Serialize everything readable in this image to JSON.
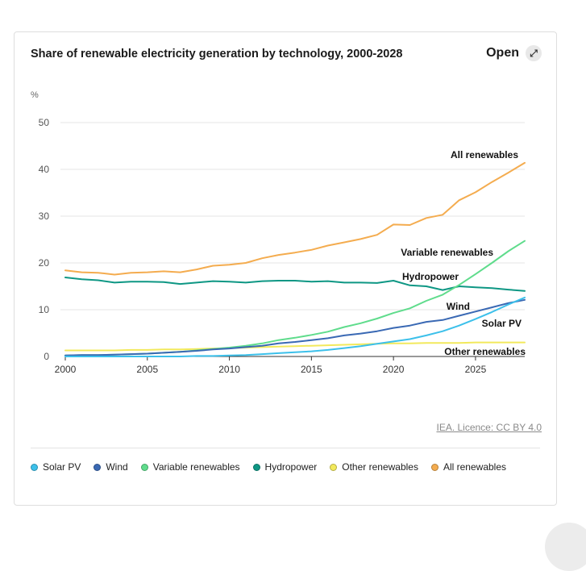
{
  "card": {
    "title": "Share of renewable electricity generation by technology, 2000-2028",
    "open_label": "Open",
    "open_icon": "expand-icon",
    "source": "IEA. Licence: CC BY 4.0"
  },
  "chart_data": {
    "type": "line",
    "title": "Share of renewable electricity generation by technology, 2000-2028",
    "ylabel": "%",
    "xlabel": "",
    "xlim": [
      2000,
      2028
    ],
    "ylim": [
      0,
      50
    ],
    "xticks": [
      2000,
      2005,
      2010,
      2015,
      2020,
      2025
    ],
    "yticks": [
      0,
      10,
      20,
      30,
      40,
      50
    ],
    "grid": true,
    "x": [
      2000,
      2001,
      2002,
      2003,
      2004,
      2005,
      2006,
      2007,
      2008,
      2009,
      2010,
      2011,
      2012,
      2013,
      2014,
      2015,
      2016,
      2017,
      2018,
      2019,
      2020,
      2021,
      2022,
      2023,
      2024,
      2025,
      2026,
      2027,
      2028
    ],
    "series": [
      {
        "name": "Solar PV",
        "label": "Solar PV",
        "color": "#3cc0ea",
        "values": [
          0,
          0,
          0,
          0,
          0,
          0,
          0,
          0,
          0.1,
          0.1,
          0.2,
          0.3,
          0.5,
          0.7,
          0.9,
          1.1,
          1.4,
          1.8,
          2.2,
          2.7,
          3.2,
          3.7,
          4.5,
          5.4,
          6.6,
          8.0,
          9.5,
          11.1,
          12.6
        ]
      },
      {
        "name": "Wind",
        "label": "Wind",
        "color": "#3a69b4",
        "values": [
          0.2,
          0.3,
          0.3,
          0.4,
          0.5,
          0.6,
          0.8,
          1.0,
          1.2,
          1.5,
          1.7,
          2.0,
          2.3,
          2.8,
          3.1,
          3.5,
          3.9,
          4.5,
          4.9,
          5.4,
          6.1,
          6.6,
          7.4,
          7.8,
          8.7,
          9.6,
          10.5,
          11.4,
          12.1
        ]
      },
      {
        "name": "Variable renewables",
        "label": "Variable renewables",
        "color": "#5fdc8c",
        "values": [
          0.2,
          0.3,
          0.3,
          0.4,
          0.5,
          0.6,
          0.8,
          1.0,
          1.3,
          1.6,
          1.9,
          2.3,
          2.8,
          3.5,
          4.0,
          4.6,
          5.3,
          6.3,
          7.1,
          8.1,
          9.3,
          10.3,
          11.9,
          13.2,
          15.3,
          17.6,
          20.0,
          22.5,
          24.7
        ]
      },
      {
        "name": "Hydropower",
        "label": "Hydropower",
        "color": "#0e9784",
        "values": [
          16.9,
          16.5,
          16.3,
          15.8,
          16.0,
          16.0,
          15.9,
          15.5,
          15.8,
          16.1,
          16.0,
          15.8,
          16.1,
          16.2,
          16.2,
          16.0,
          16.1,
          15.8,
          15.8,
          15.7,
          16.2,
          15.2,
          15.0,
          14.2,
          15.0,
          14.8,
          14.6,
          14.3,
          14.0
        ]
      },
      {
        "name": "Other renewables",
        "label": "Other renewables",
        "color": "#f2e95c",
        "values": [
          1.3,
          1.3,
          1.3,
          1.3,
          1.4,
          1.4,
          1.5,
          1.5,
          1.6,
          1.7,
          1.8,
          1.9,
          2.0,
          2.1,
          2.2,
          2.3,
          2.4,
          2.5,
          2.6,
          2.7,
          2.8,
          2.8,
          2.9,
          2.9,
          2.9,
          3.0,
          3.0,
          3.0,
          3.0
        ]
      },
      {
        "name": "All renewables",
        "label": "All renewables",
        "color": "#f4ac4f",
        "values": [
          18.4,
          18.0,
          17.9,
          17.5,
          17.9,
          18.0,
          18.2,
          18.0,
          18.6,
          19.4,
          19.6,
          20.0,
          21.0,
          21.7,
          22.2,
          22.8,
          23.7,
          24.4,
          25.1,
          26.0,
          28.2,
          28.1,
          29.6,
          30.3,
          33.4,
          35.1,
          37.3,
          39.3,
          41.4
        ]
      }
    ]
  },
  "legend": [
    {
      "label": "Solar PV",
      "color": "#3cc0ea"
    },
    {
      "label": "Wind",
      "color": "#3a69b4"
    },
    {
      "label": "Variable renewables",
      "color": "#5fdc8c"
    },
    {
      "label": "Hydropower",
      "color": "#0e9784"
    },
    {
      "label": "Other renewables",
      "color": "#f2e95c"
    },
    {
      "label": "All renewables",
      "color": "#f4ac4f"
    }
  ]
}
